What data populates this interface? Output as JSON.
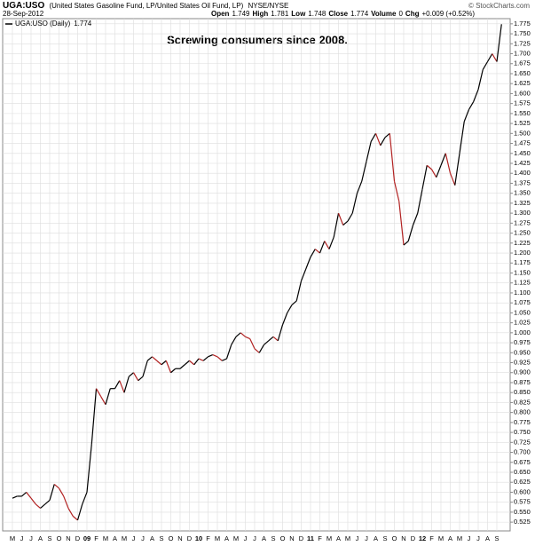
{
  "header": {
    "symbol": "UGA:USO",
    "description": "(United States Gasoline Fund, LP/United States Oil Fund, LP)",
    "exchange": "NYSE/NYSE",
    "copyright": "© StockCharts.com",
    "date": "28-Sep-2012",
    "stats": [
      {
        "label": "Open",
        "value": 1.749
      },
      {
        "label": "High",
        "value": 1.781
      },
      {
        "label": "Low",
        "value": 1.748
      },
      {
        "label": "Close",
        "value": 1.774
      },
      {
        "label": "Volume",
        "value": 0
      },
      {
        "label": "Chg",
        "value": "+0.009 (+0.52%)"
      }
    ]
  },
  "chart_data": {
    "type": "line",
    "title": "Screwing consumers since 2008.",
    "categories": [
      "M",
      null,
      "J",
      null,
      "J",
      null,
      "A",
      null,
      "S",
      null,
      "O",
      null,
      "N",
      null,
      "D",
      null,
      "09",
      null,
      "F",
      null,
      "M",
      null,
      "A",
      null,
      "M",
      null,
      "J",
      null,
      "J",
      null,
      "A",
      null,
      "S",
      null,
      "O",
      null,
      "N",
      null,
      "D",
      null,
      "10",
      null,
      "F",
      null,
      "M",
      null,
      "A",
      null,
      "M",
      null,
      "J",
      null,
      "J",
      null,
      "A",
      null,
      "S",
      null,
      "O",
      null,
      "N",
      null,
      "D",
      null,
      "11",
      null,
      "F",
      null,
      "M",
      null,
      "A",
      null,
      "M",
      null,
      "J",
      null,
      "J",
      null,
      "A",
      null,
      "S",
      null,
      "O",
      null,
      "N",
      null,
      "D",
      null,
      "12",
      null,
      "F",
      null,
      "M",
      null,
      "A",
      null,
      "M",
      null,
      "J",
      null,
      "J",
      null,
      "A",
      null,
      "S",
      null
    ],
    "series": [
      {
        "name": "UGA:USO (Daily)",
        "color": "#000000",
        "down_color": "#b22222",
        "values": [
          0.585,
          0.59,
          0.59,
          0.6,
          0.585,
          0.57,
          0.56,
          0.57,
          0.58,
          0.62,
          0.61,
          0.59,
          0.56,
          0.54,
          0.53,
          0.57,
          0.6,
          0.72,
          0.86,
          0.84,
          0.82,
          0.86,
          0.86,
          0.88,
          0.85,
          0.89,
          0.9,
          0.88,
          0.89,
          0.93,
          0.94,
          0.93,
          0.92,
          0.93,
          0.9,
          0.91,
          0.91,
          0.92,
          0.93,
          0.92,
          0.935,
          0.93,
          0.94,
          0.945,
          0.94,
          0.93,
          0.935,
          0.97,
          0.99,
          1.0,
          0.99,
          0.985,
          0.96,
          0.95,
          0.97,
          0.98,
          0.99,
          0.98,
          1.02,
          1.05,
          1.07,
          1.08,
          1.13,
          1.16,
          1.19,
          1.21,
          1.2,
          1.23,
          1.21,
          1.24,
          1.3,
          1.27,
          1.28,
          1.3,
          1.35,
          1.38,
          1.43,
          1.48,
          1.5,
          1.47,
          1.49,
          1.5,
          1.38,
          1.33,
          1.22,
          1.23,
          1.27,
          1.3,
          1.36,
          1.42,
          1.41,
          1.39,
          1.42,
          1.45,
          1.4,
          1.37,
          1.45,
          1.53,
          1.56,
          1.58,
          1.61,
          1.66,
          1.68,
          1.7,
          1.68,
          1.774
        ]
      }
    ],
    "ylim": [
      0.503,
      1.788
    ],
    "yticks": [
      0.525,
      {
        "value": 0.55,
        "label": "0.550"
      },
      0.575,
      {
        "value": 0.6,
        "label": "0.600"
      },
      0.625,
      {
        "value": 0.65,
        "label": "0.650"
      },
      0.675,
      {
        "value": 0.7,
        "label": "0.700"
      },
      0.725,
      {
        "value": 0.75,
        "label": "0.750"
      },
      0.775,
      {
        "value": 0.8,
        "label": "0.800"
      },
      0.825,
      {
        "value": 0.85,
        "label": "0.850"
      },
      0.875,
      {
        "value": 0.9,
        "label": "0.900"
      },
      0.925,
      {
        "value": 0.95,
        "label": "0.950"
      },
      0.975,
      {
        "value": 1,
        "label": "1.000"
      },
      1.025,
      {
        "value": 1.05,
        "label": "1.050"
      },
      1.075,
      {
        "value": 1.1,
        "label": "1.100"
      },
      1.125,
      {
        "value": 1.15,
        "label": "1.150"
      },
      1.175,
      {
        "value": 1.2,
        "label": "1.200"
      },
      1.225,
      {
        "value": 1.25,
        "label": "1.250"
      },
      1.275,
      {
        "value": 1.3,
        "label": "1.300"
      },
      1.325,
      {
        "value": 1.35,
        "label": "1.350"
      },
      1.375,
      {
        "value": 1.4,
        "label": "1.400"
      },
      1.425,
      {
        "value": 1.45,
        "label": "1.450"
      },
      1.475,
      {
        "value": 1.5,
        "label": "1.500"
      },
      1.525,
      {
        "value": 1.55,
        "label": "1.550"
      },
      1.575,
      {
        "value": 1.6,
        "label": "1.600"
      },
      1.625,
      {
        "value": 1.65,
        "label": "1.650"
      },
      1.675,
      {
        "value": 1.7,
        "label": "1.700"
      },
      1.725,
      {
        "value": 1.75,
        "label": "1.750"
      },
      1.775
    ],
    "grid": true,
    "legend": "top-left"
  }
}
